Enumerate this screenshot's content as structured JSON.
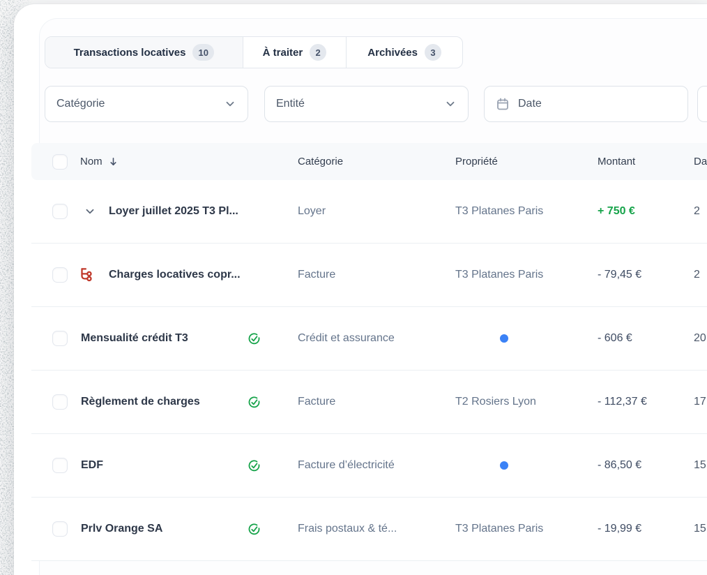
{
  "tabs": [
    {
      "label": "Transactions locatives",
      "count": "10",
      "active": true
    },
    {
      "label": "À traiter",
      "count": "2",
      "active": false
    },
    {
      "label": "Archivées",
      "count": "3",
      "active": false
    }
  ],
  "filters": {
    "category_label": "Catégorie",
    "entity_label": "Entité",
    "date_label": "Date"
  },
  "table": {
    "columns": {
      "name": "Nom",
      "category": "Catégorie",
      "property": "Propriété",
      "amount": "Montant",
      "date": "Date"
    },
    "sort_column": "Nom",
    "sort_direction": "desc",
    "rows": [
      {
        "name": "Loyer juillet 2025 T3 Pl...",
        "leading_icon": "chevron-down",
        "status_icon": null,
        "category": "Loyer",
        "property": "T3 Platanes Paris",
        "property_dot": false,
        "amount": "+ 750 €",
        "amount_type": "positive",
        "date": "2"
      },
      {
        "name": "Charges locatives copr...",
        "leading_icon": "split",
        "status_icon": null,
        "category": "Facture",
        "property": "T3 Platanes Paris",
        "property_dot": false,
        "amount": "- 79,45 €",
        "amount_type": "negative",
        "date": "2"
      },
      {
        "name": "Mensualité crédit T3",
        "leading_icon": null,
        "status_icon": "check-circle",
        "category": "Crédit et assurance",
        "property": "",
        "property_dot": true,
        "amount": "- 606 €",
        "amount_type": "negative",
        "date": "20"
      },
      {
        "name": "Règlement de charges",
        "leading_icon": null,
        "status_icon": "check-circle",
        "category": "Facture",
        "property": "T2 Rosiers Lyon",
        "property_dot": false,
        "amount": "- 112,37 €",
        "amount_type": "negative",
        "date": "17"
      },
      {
        "name": "EDF",
        "leading_icon": null,
        "status_icon": "check-circle",
        "category": "Facture d’électricité",
        "property": "",
        "property_dot": true,
        "amount": "- 86,50 €",
        "amount_type": "negative",
        "date": "15"
      },
      {
        "name": "Prlv Orange SA",
        "leading_icon": null,
        "status_icon": "check-circle",
        "category": "Frais postaux & té...",
        "property": "T3 Platanes Paris",
        "property_dot": false,
        "amount": "- 19,99 €",
        "amount_type": "negative",
        "date": "15"
      }
    ]
  },
  "colors": {
    "amount_positive": "#16a34a",
    "amount_negative": "#3f4c63",
    "reconciled_check": "#16a34a",
    "split_icon": "#c0392b",
    "property_dot": "#3b82f6",
    "header_background": "#f7f9fb",
    "border": "#e3e7ed"
  }
}
